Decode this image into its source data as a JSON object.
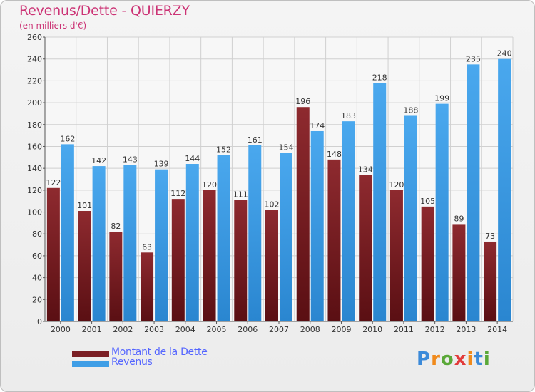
{
  "header": {
    "title": "Revenus/Dette - QUIERZY",
    "subtitle": "(en milliers d'€)"
  },
  "chart_data": {
    "type": "bar",
    "title": "Revenus/Dette - QUIERZY",
    "ylabel": "(en milliers d'€)",
    "xlabel": "",
    "categories": [
      "2000",
      "2001",
      "2002",
      "2003",
      "2004",
      "2005",
      "2006",
      "2007",
      "2008",
      "2009",
      "2010",
      "2011",
      "2012",
      "2013",
      "2014"
    ],
    "series": [
      {
        "name": "Montant de la Dette",
        "color": "#7a1e24",
        "values": [
          122,
          101,
          82,
          63,
          112,
          120,
          111,
          102,
          196,
          148,
          134,
          120,
          105,
          89,
          73
        ]
      },
      {
        "name": "Revenus",
        "color": "#3f9ee6",
        "values": [
          162,
          142,
          143,
          139,
          144,
          152,
          161,
          154,
          174,
          183,
          218,
          188,
          199,
          235,
          240
        ]
      }
    ],
    "ylim": [
      0,
      260
    ],
    "yticks": [
      0,
      20,
      40,
      60,
      80,
      100,
      120,
      140,
      160,
      180,
      200,
      220,
      240,
      260
    ],
    "grid": true,
    "legend": "bottom-left"
  },
  "legend": {
    "items": [
      {
        "label": "Montant de la Dette",
        "color": "#7a1e24"
      },
      {
        "label": "Revenus",
        "color": "#3f9ee6"
      }
    ]
  },
  "logo": {
    "letters": [
      "P",
      "r",
      "o",
      "x",
      "i",
      "t",
      "i"
    ],
    "colors": [
      "#3b8ad9",
      "#f08a1c",
      "#5aa838",
      "#e23b3b",
      "#f08a1c",
      "#3b8ad9",
      "#5aa838"
    ]
  }
}
